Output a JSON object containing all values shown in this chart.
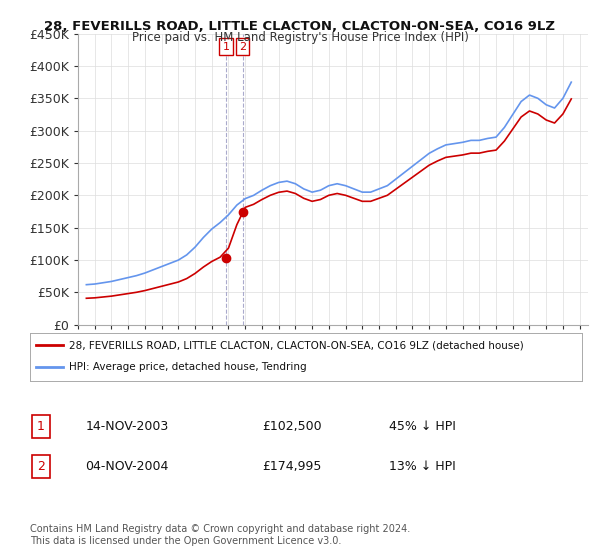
{
  "title_line1": "28, FEVERILLS ROAD, LITTLE CLACTON, CLACTON-ON-SEA, CO16 9LZ",
  "title_line2": "Price paid vs. HM Land Registry's House Price Index (HPI)",
  "ylabel": "",
  "xlabel": "",
  "ylim": [
    0,
    450000
  ],
  "yticks": [
    0,
    50000,
    100000,
    150000,
    200000,
    250000,
    300000,
    350000,
    400000,
    450000
  ],
  "ytick_labels": [
    "£0",
    "£50K",
    "£100K",
    "£150K",
    "£200K",
    "£250K",
    "£300K",
    "£350K",
    "£400K",
    "£450K"
  ],
  "sale1_date_num": 2003.87,
  "sale1_price": 102500,
  "sale1_label": "1",
  "sale2_date_num": 2004.84,
  "sale2_price": 174995,
  "sale2_label": "2",
  "hpi_color": "#6495ED",
  "price_color": "#CC0000",
  "marker_color": "#CC0000",
  "sale_box_color": "#CC0000",
  "vline_color": "#AAAACC",
  "legend_entry1": "28, FEVERILLS ROAD, LITTLE CLACTON, CLACTON-ON-SEA, CO16 9LZ (detached house)",
  "legend_entry2": "HPI: Average price, detached house, Tendring",
  "table_row1": [
    "1",
    "14-NOV-2003",
    "£102,500",
    "45% ↓ HPI"
  ],
  "table_row2": [
    "2",
    "04-NOV-2004",
    "£174,995",
    "13% ↓ HPI"
  ],
  "footnote": "Contains HM Land Registry data © Crown copyright and database right 2024.\nThis data is licensed under the Open Government Licence v3.0.",
  "background_color": "#ffffff",
  "grid_color": "#dddddd"
}
